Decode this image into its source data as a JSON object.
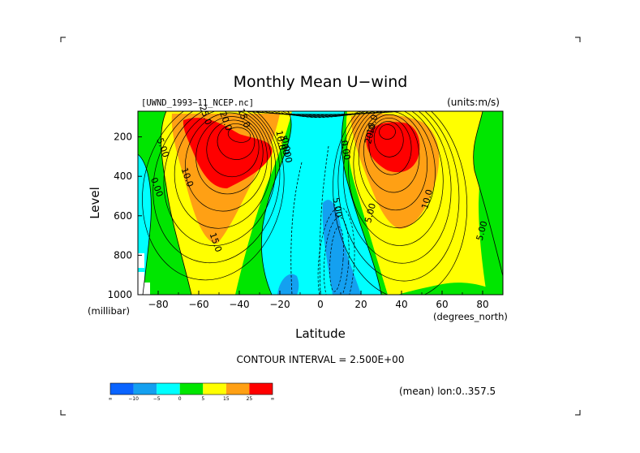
{
  "chart_data": {
    "type": "heatmap",
    "title": "Monthly Mean U−wind",
    "dataset": "[UWND_1993−11_NCEP.nc]",
    "units": "(units:m/s)",
    "xlabel": "Latitude",
    "ylabel": "Level",
    "xunit": "(degrees_north)",
    "yunit": "(millibar)",
    "xlim": [
      -90,
      90
    ],
    "ylim": [
      1000,
      10
    ],
    "xticks": [
      -80,
      -60,
      -40,
      -20,
      0,
      20,
      40,
      60,
      80
    ],
    "xtick_labels": [
      "−80",
      "−60",
      "−40",
      "−20",
      "0",
      "20",
      "40",
      "60",
      "80"
    ],
    "yticks": [
      200,
      400,
      600,
      800,
      1000
    ],
    "ytick_labels": [
      "200",
      "400",
      "600",
      "800",
      "1000"
    ],
    "contour_interval_text": "CONTOUR INTERVAL = 2.500E+00",
    "region_text": "(mean) lon:0..357.5",
    "levels": [
      -10,
      -5,
      0,
      5,
      15,
      25
    ],
    "colorbar": {
      "colors": [
        "#0a64ff",
        "#14a0f0",
        "#00ffff",
        "#00e600",
        "#ffff00",
        "#ffa014",
        "#ff0000"
      ],
      "labels": [
        "∞",
        "−10",
        "−5",
        "0",
        "5",
        "15",
        "25",
        "∞"
      ]
    },
    "jets": [
      {
        "name": "southern-hemisphere-jet",
        "lat": -40,
        "level": 200,
        "max": 26
      },
      {
        "name": "northern-hemisphere-jet",
        "lat": 35,
        "level": 200,
        "max": 29
      },
      {
        "name": "tropical-easterlies",
        "lat": 5,
        "level": 850,
        "min": -7
      }
    ],
    "contour_labels": [
      {
        "text": "25.0",
        "lat": -58,
        "level": 95
      },
      {
        "text": "20.0",
        "lat": -48,
        "level": 125
      },
      {
        "text": "15.0",
        "lat": -39,
        "level": 110
      },
      {
        "text": "10.0",
        "lat": -21,
        "level": 220
      },
      {
        "text": "5.00",
        "lat": -19,
        "level": 245
      },
      {
        "text": "0.000",
        "lat": -18,
        "level": 270
      },
      {
        "text": "5.00",
        "lat": -79,
        "level": 260
      },
      {
        "text": "10.0",
        "lat": -67,
        "level": 410
      },
      {
        "text": "0.00",
        "lat": -82,
        "level": 460
      },
      {
        "text": "15.0",
        "lat": -53,
        "level": 740
      },
      {
        "text": "5.00",
        "lat": 7,
        "level": 560
      },
      {
        "text": "0.00",
        "lat": 11,
        "level": 270
      },
      {
        "text": "5.00",
        "lat": 26,
        "level": 590
      },
      {
        "text": "10.0",
        "lat": 27,
        "level": 140
      },
      {
        "text": "20.0",
        "lat": 26,
        "level": 190
      },
      {
        "text": "10.0",
        "lat": 54,
        "level": 520
      },
      {
        "text": "5.00",
        "lat": 81,
        "level": 680
      }
    ]
  }
}
